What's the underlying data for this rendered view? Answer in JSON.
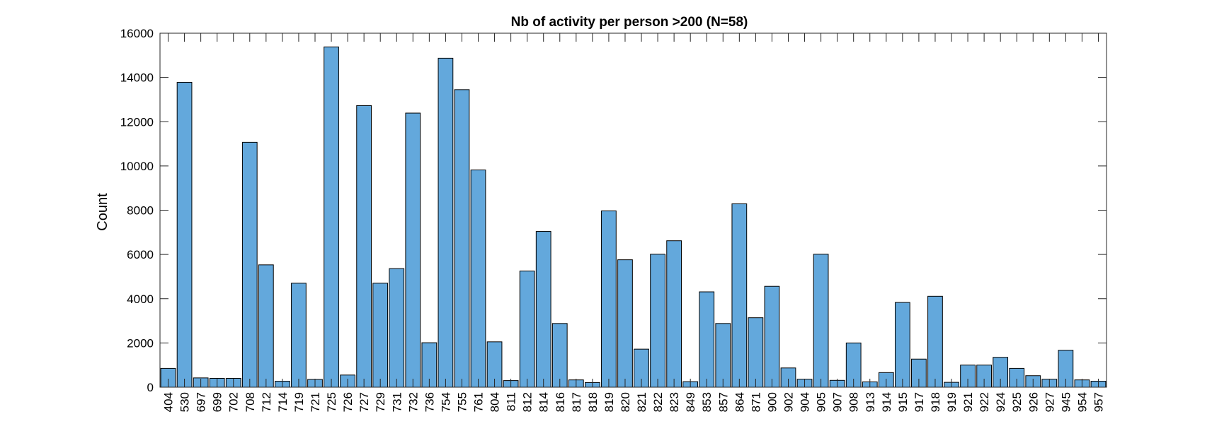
{
  "chart_data": {
    "type": "bar",
    "title": "Nb of activity per person >200 (N=58)",
    "xlabel": "",
    "ylabel": "Count",
    "ylim": [
      0,
      16000
    ],
    "yticks": [
      0,
      2000,
      4000,
      6000,
      8000,
      10000,
      12000,
      14000,
      16000
    ],
    "grid": false,
    "bar_color": "#63a8dc",
    "bar_edge_color": "#000000",
    "categories": [
      "404",
      "530",
      "697",
      "699",
      "702",
      "708",
      "712",
      "714",
      "719",
      "721",
      "725",
      "726",
      "727",
      "729",
      "731",
      "732",
      "736",
      "754",
      "755",
      "761",
      "804",
      "811",
      "812",
      "814",
      "816",
      "817",
      "818",
      "819",
      "820",
      "821",
      "822",
      "823",
      "849",
      "853",
      "857",
      "864",
      "871",
      "900",
      "902",
      "904",
      "905",
      "907",
      "908",
      "913",
      "914",
      "915",
      "917",
      "918",
      "919",
      "921",
      "922",
      "924",
      "925",
      "926",
      "927",
      "945",
      "954",
      "957"
    ],
    "values": [
      850,
      13780,
      420,
      400,
      400,
      11070,
      5530,
      270,
      4700,
      350,
      15380,
      550,
      12730,
      4700,
      5360,
      12390,
      2010,
      14870,
      13450,
      9820,
      2050,
      300,
      5250,
      7040,
      2880,
      330,
      210,
      7970,
      5760,
      1720,
      6010,
      6620,
      250,
      4310,
      2880,
      8290,
      3140,
      4560,
      870,
      360,
      6010,
      310,
      2000,
      240,
      660,
      3830,
      1270,
      4110,
      220,
      1000,
      1000,
      1350,
      850,
      520,
      360,
      1670,
      330,
      270
    ]
  }
}
